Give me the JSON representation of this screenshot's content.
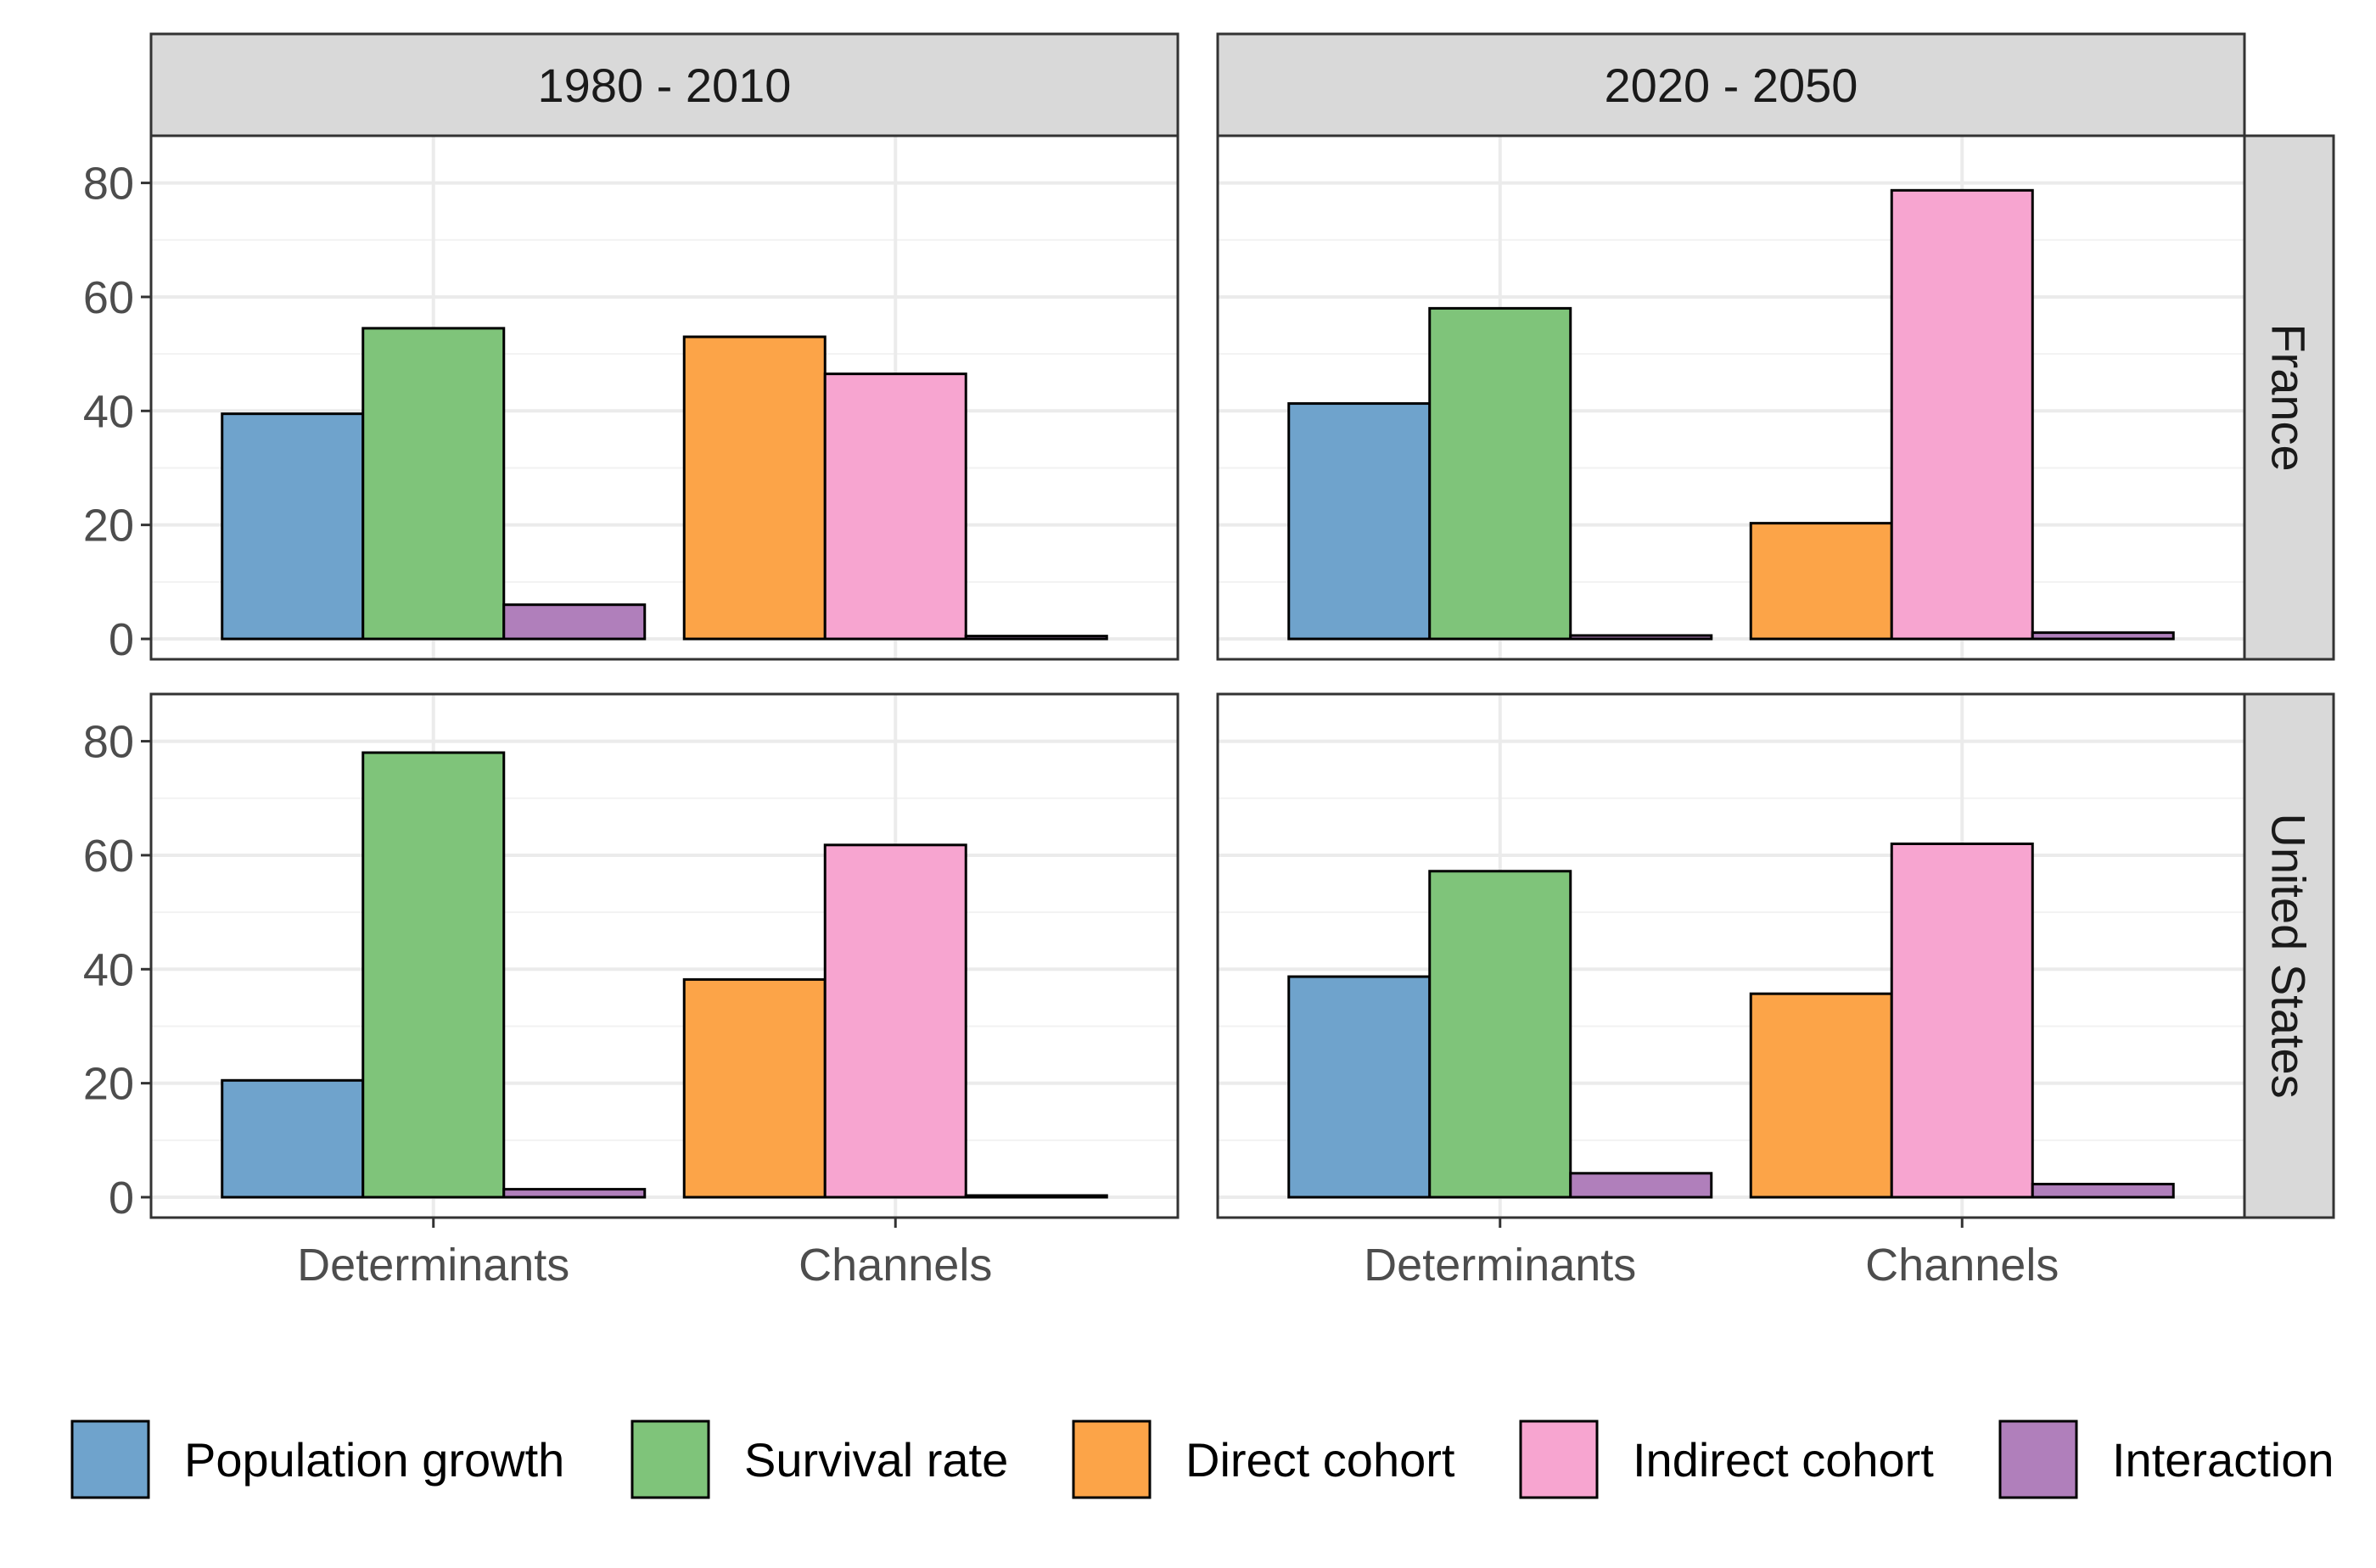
{
  "chart_data": {
    "type": "bar",
    "layout": "facet-grid",
    "col_facets": [
      "1980 - 2010",
      "2020 - 2050"
    ],
    "row_facets": [
      "France",
      "United States"
    ],
    "categories": [
      "Determinants",
      "Channels"
    ],
    "ylim": [
      0,
      85
    ],
    "yticks": [
      "0",
      "20",
      "40",
      "60",
      "80"
    ],
    "grid": true,
    "legend_position": "bottom",
    "legend": [
      {
        "name": "Population growth",
        "color": "#6fa3cc"
      },
      {
        "name": "Survival rate",
        "color": "#7fc47a"
      },
      {
        "name": "Direct cohort",
        "color": "#fca448"
      },
      {
        "name": "Indirect cohort",
        "color": "#f7a5d0"
      },
      {
        "name": "Interaction",
        "color": "#b07fbb"
      }
    ],
    "panels": [
      {
        "row": "France",
        "col": "1980 - 2010",
        "bars": {
          "Determinants": [
            {
              "series": "Population growth",
              "value": 39.5
            },
            {
              "series": "Survival rate",
              "value": 54.5
            },
            {
              "series": "Interaction",
              "value": 6.0
            }
          ],
          "Channels": [
            {
              "series": "Direct cohort",
              "value": 53.0
            },
            {
              "series": "Indirect cohort",
              "value": 46.5
            },
            {
              "series": "Interaction",
              "value": 0.5
            }
          ]
        }
      },
      {
        "row": "France",
        "col": "2020 - 2050",
        "bars": {
          "Determinants": [
            {
              "series": "Population growth",
              "value": 41.3
            },
            {
              "series": "Survival rate",
              "value": 58.0
            },
            {
              "series": "Interaction",
              "value": 0.6
            }
          ],
          "Channels": [
            {
              "series": "Direct cohort",
              "value": 20.3
            },
            {
              "series": "Indirect cohort",
              "value": 78.7
            },
            {
              "series": "Interaction",
              "value": 1.1
            }
          ]
        }
      },
      {
        "row": "United States",
        "col": "1980 - 2010",
        "bars": {
          "Determinants": [
            {
              "series": "Population growth",
              "value": 20.5
            },
            {
              "series": "Survival rate",
              "value": 78.0
            },
            {
              "series": "Interaction",
              "value": 1.4
            }
          ],
          "Channels": [
            {
              "series": "Direct cohort",
              "value": 38.2
            },
            {
              "series": "Indirect cohort",
              "value": 61.8
            },
            {
              "series": "Interaction",
              "value": 0.3
            }
          ]
        }
      },
      {
        "row": "United States",
        "col": "2020 - 2050",
        "bars": {
          "Determinants": [
            {
              "series": "Population growth",
              "value": 38.7
            },
            {
              "series": "Survival rate",
              "value": 57.2
            },
            {
              "series": "Interaction",
              "value": 4.2
            }
          ],
          "Channels": [
            {
              "series": "Direct cohort",
              "value": 35.7
            },
            {
              "series": "Indirect cohort",
              "value": 62.0
            },
            {
              "series": "Interaction",
              "value": 2.3
            }
          ]
        }
      }
    ]
  }
}
